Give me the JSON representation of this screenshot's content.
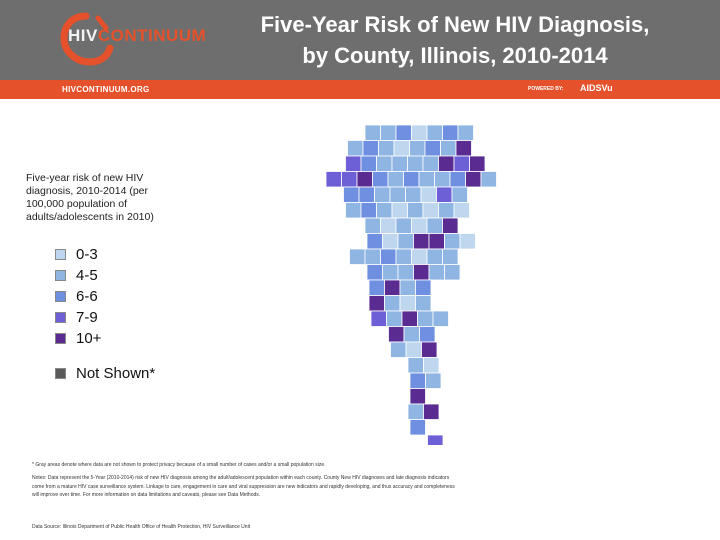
{
  "header": {
    "logo_prefix": "HIV",
    "logo_suffix": "CONTINUUM",
    "title_line1": "Five-Year Risk of New HIV Diagnosis,",
    "title_line2": "by County, Illinois, 2010-2014",
    "site_url": "HIVCONTINUUM.ORG",
    "powered_by": "POWERED BY:",
    "powered_brand": "AIDSVu"
  },
  "colors": {
    "header_bg": "#6e6e6e",
    "accent": "#e5512b",
    "bin_0_3": "#bfd7ee",
    "bin_4_5": "#8fb5e2",
    "bin_6_6": "#6f8fe0",
    "bin_7_9": "#6d5fd6",
    "bin_10_plus": "#5a2c91",
    "not_shown": "#5a5a5a"
  },
  "legend": {
    "title": "Five-year risk of  new HIV diagnosis, 2010-2014 (per 100,000 population of adults/adolescents in 2010)",
    "items": [
      {
        "label": "0-3",
        "color": "#bfd7ee"
      },
      {
        "label": "4-5",
        "color": "#8fb5e2"
      },
      {
        "label": "6-6",
        "color": "#6f8fe0"
      },
      {
        "label": "7-9",
        "color": "#6d5fd6"
      },
      {
        "label": "10+",
        "color": "#5a2c91"
      },
      {
        "label": "Not Shown*",
        "color": "#5a5a5a"
      }
    ]
  },
  "footnotes": {
    "asterisk": "* Gray areas denote where data are not shown to protect privacy because of a small number of cases and/or a small population size.",
    "notes": "Notes: Data represent the 5-Year (2010-2014) risk of new HIV diagnosis among the adult/adolescent population within each county. County New HIV diagnoses and late diagnosis indicators come from a mature HIV case surveillance system. Linkage to care, engagement in care and viral suppression are new indicators and rapidly developing, and thus accuracy and completeness will improve over time. For more information on data limitations and caveats, please see Data Methods.",
    "source": "Data Source: Illinois Department of Public Health Office of Health Protection, HIV Surveillance Unit"
  },
  "map": {
    "region": "Illinois counties",
    "fill_pattern": [
      "..1120121..",
      ".12101214..",
      ".321111434.",
      "33421211241",
      ".22111031...",
      ".12101010...",
      "..101014....",
      "..2014410...",
      ".1121011....",
      "..211411....",
      "..2412......",
      "..4101......",
      "..31411.....",
      "...412......",
      "...104......",
      "....10......",
      "....21......",
      "....4.......",
      "....14......",
      "....2.......",
      ".....3......"
    ]
  }
}
